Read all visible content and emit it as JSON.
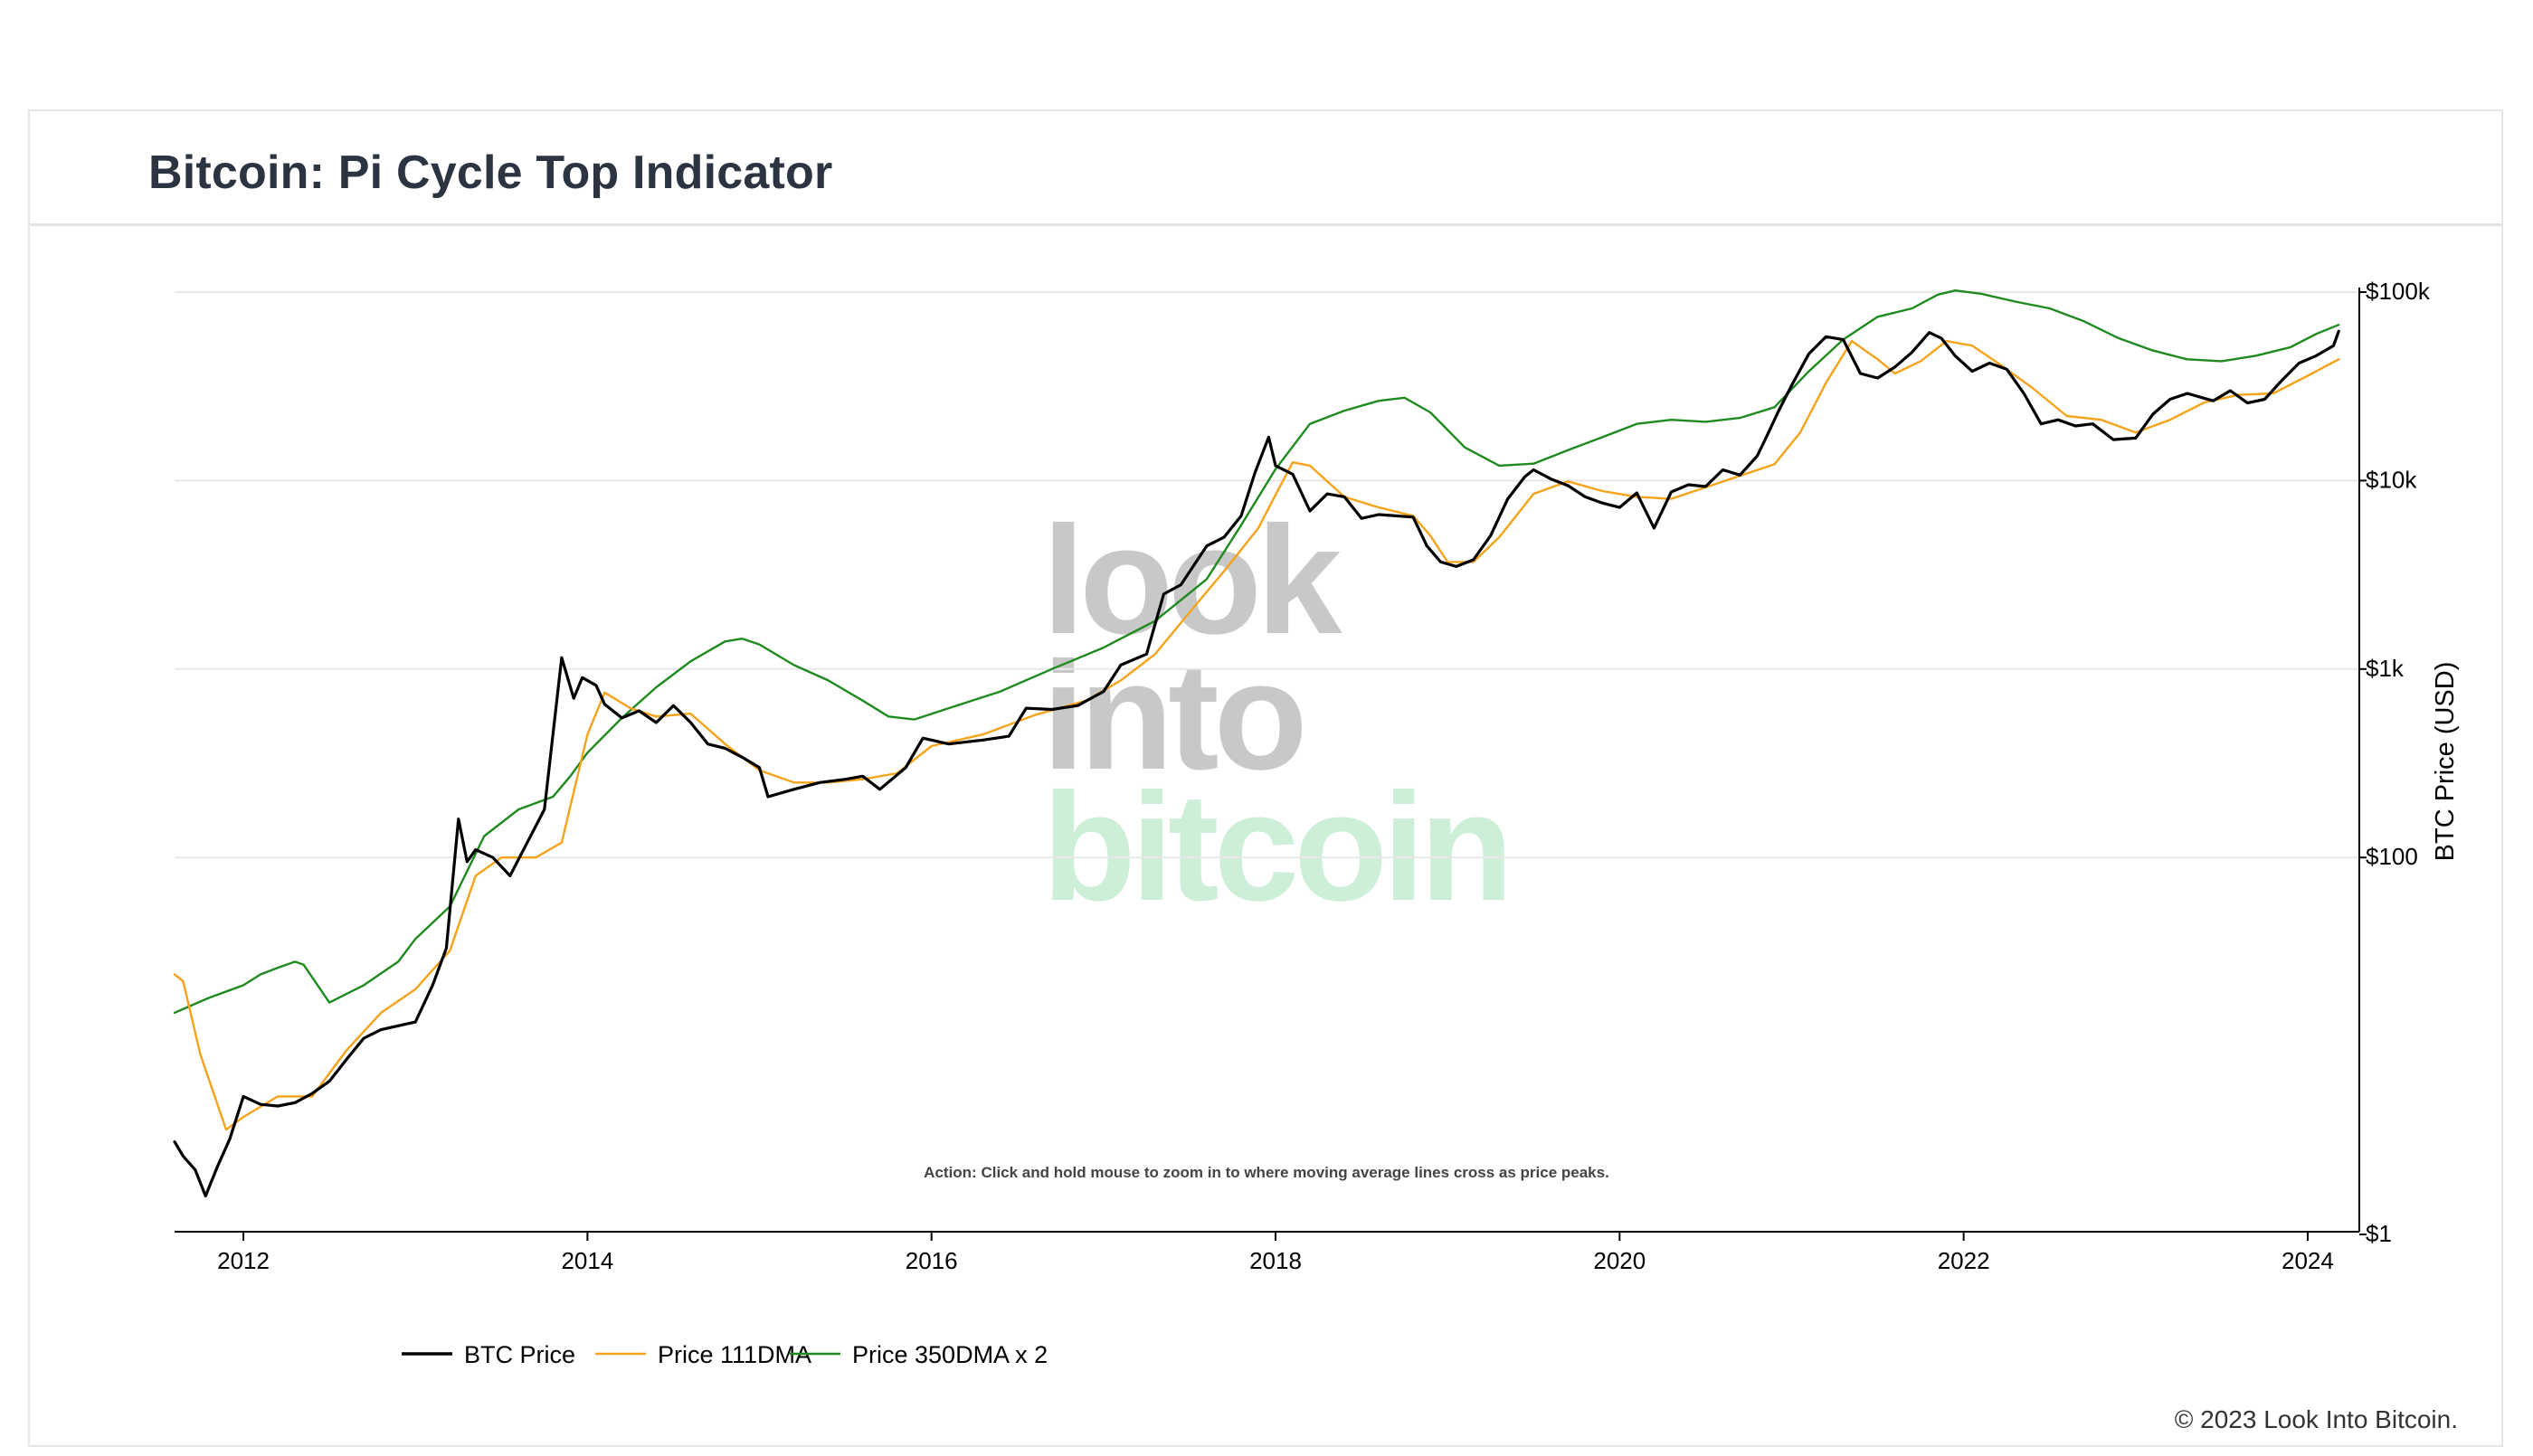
{
  "page": {
    "title": "Bitcoin: Pi Cycle Top Indicator",
    "copyright": "© 2023 Look Into Bitcoin.",
    "watermark": [
      "look",
      "into",
      "bitcoin"
    ],
    "action_note": "Action: Click and hold mouse to zoom in to where moving average lines cross as price peaks."
  },
  "colors": {
    "btc_price": "#000000",
    "dma111": "#f5a31a",
    "dma350x2": "#1f8a1f",
    "watermark_gray": "#c8c8c8",
    "watermark_green": "#cdeed7",
    "grid": "#e8e8e8"
  },
  "chart_data": {
    "type": "line",
    "title": "Bitcoin: Pi Cycle Top Indicator",
    "xlabel": "",
    "ylabel": "BTC Price (USD)",
    "yscale": "log",
    "xlim": [
      2011.6,
      2024.3
    ],
    "ylim": [
      1,
      100000
    ],
    "x_ticks": [
      "2012",
      "2014",
      "2016",
      "2018",
      "2020",
      "2022",
      "2024"
    ],
    "x_tick_values": [
      2012,
      2014,
      2016,
      2018,
      2020,
      2022,
      2024
    ],
    "y_ticks": [
      "$1",
      "$100",
      "$1k",
      "$10k",
      "$100k"
    ],
    "y_tick_values": [
      1,
      100,
      1000,
      10000,
      100000
    ],
    "legend": [
      "BTC Price",
      "Price 111DMA",
      "Price 350DMA x 2"
    ],
    "legend_position": "bottom-left",
    "series": [
      {
        "name": "BTC Price",
        "x": [
          2011.6,
          2011.65,
          2011.72,
          2011.78,
          2011.85,
          2011.92,
          2012.0,
          2012.1,
          2012.2,
          2012.3,
          2012.4,
          2012.5,
          2012.6,
          2012.7,
          2012.8,
          2012.9,
          2013.0,
          2013.1,
          2013.18,
          2013.25,
          2013.3,
          2013.35,
          2013.45,
          2013.55,
          2013.65,
          2013.75,
          2013.85,
          2013.92,
          2013.97,
          2014.05,
          2014.1,
          2014.2,
          2014.3,
          2014.4,
          2014.5,
          2014.6,
          2014.7,
          2014.8,
          2014.9,
          2015.0,
          2015.05,
          2015.2,
          2015.35,
          2015.5,
          2015.6,
          2015.7,
          2015.85,
          2015.95,
          2016.1,
          2016.3,
          2016.45,
          2016.55,
          2016.7,
          2016.85,
          2017.0,
          2017.1,
          2017.25,
          2017.35,
          2017.45,
          2017.6,
          2017.7,
          2017.8,
          2017.88,
          2017.96,
          2018.0,
          2018.1,
          2018.2,
          2018.3,
          2018.4,
          2018.5,
          2018.6,
          2018.7,
          2018.8,
          2018.88,
          2018.96,
          2019.05,
          2019.15,
          2019.25,
          2019.35,
          2019.45,
          2019.5,
          2019.6,
          2019.7,
          2019.8,
          2019.9,
          2020.0,
          2020.1,
          2020.2,
          2020.3,
          2020.4,
          2020.5,
          2020.6,
          2020.7,
          2020.8,
          2020.85,
          2020.92,
          2021.0,
          2021.1,
          2021.2,
          2021.3,
          2021.4,
          2021.5,
          2021.6,
          2021.7,
          2021.8,
          2021.87,
          2021.95,
          2022.05,
          2022.15,
          2022.25,
          2022.35,
          2022.45,
          2022.55,
          2022.65,
          2022.75,
          2022.87,
          2023.0,
          2023.1,
          2023.2,
          2023.3,
          2023.45,
          2023.55,
          2023.65,
          2023.75,
          2023.85,
          2023.95,
          2024.05,
          2024.15,
          2024.18
        ],
        "values": [
          3.1,
          2.6,
          2.2,
          1.6,
          2.3,
          3.2,
          5.4,
          4.9,
          4.8,
          5.0,
          5.6,
          6.5,
          8.5,
          11,
          12.2,
          12.8,
          13.4,
          21,
          33,
          160,
          95,
          110,
          100,
          80,
          120,
          180,
          1150,
          700,
          900,
          820,
          650,
          550,
          600,
          520,
          640,
          520,
          400,
          380,
          340,
          300,
          210,
          230,
          250,
          260,
          270,
          230,
          300,
          430,
          400,
          420,
          440,
          620,
          610,
          640,
          760,
          1050,
          1200,
          2500,
          2800,
          4500,
          5000,
          6500,
          11000,
          17000,
          12000,
          10800,
          6900,
          8500,
          8200,
          6300,
          6600,
          6500,
          6400,
          4500,
          3700,
          3500,
          3800,
          5100,
          8000,
          10500,
          11400,
          10200,
          9400,
          8200,
          7600,
          7200,
          8600,
          5600,
          8700,
          9500,
          9300,
          11400,
          10700,
          13500,
          16800,
          23000,
          32000,
          47000,
          58000,
          56000,
          37000,
          35000,
          40000,
          48000,
          61000,
          57000,
          46000,
          38000,
          42000,
          39000,
          29000,
          20000,
          21000,
          19500,
          20000,
          16500,
          16800,
          22500,
          27000,
          29000,
          26500,
          30000,
          25800,
          27000,
          34000,
          42000,
          46000,
          52000,
          62000
        ]
      },
      {
        "name": "Price 111DMA",
        "x": [
          2011.6,
          2011.65,
          2011.75,
          2011.9,
          2012.0,
          2012.2,
          2012.4,
          2012.6,
          2012.8,
          2013.0,
          2013.2,
          2013.35,
          2013.5,
          2013.7,
          2013.85,
          2014.0,
          2014.1,
          2014.25,
          2014.4,
          2014.6,
          2014.8,
          2015.0,
          2015.2,
          2015.4,
          2015.6,
          2015.8,
          2016.0,
          2016.3,
          2016.6,
          2016.9,
          2017.1,
          2017.3,
          2017.5,
          2017.7,
          2017.9,
          2018.0,
          2018.1,
          2018.2,
          2018.4,
          2018.6,
          2018.8,
          2018.9,
          2019.0,
          2019.15,
          2019.3,
          2019.5,
          2019.7,
          2019.9,
          2020.1,
          2020.3,
          2020.5,
          2020.7,
          2020.9,
          2021.05,
          2021.2,
          2021.35,
          2021.5,
          2021.6,
          2021.75,
          2021.9,
          2022.05,
          2022.2,
          2022.4,
          2022.6,
          2022.8,
          2023.0,
          2023.2,
          2023.4,
          2023.6,
          2023.8,
          2024.0,
          2024.18
        ],
        "values": [
          24,
          22,
          9,
          3.6,
          4.2,
          5.4,
          5.4,
          9.5,
          15,
          20,
          32,
          80,
          100,
          100,
          120,
          450,
          750,
          620,
          560,
          580,
          400,
          290,
          250,
          250,
          260,
          280,
          390,
          450,
          570,
          680,
          870,
          1200,
          2000,
          3300,
          5600,
          8400,
          12500,
          12000,
          8200,
          7200,
          6500,
          5100,
          3700,
          3700,
          5000,
          8500,
          9900,
          8800,
          8200,
          8000,
          9200,
          10600,
          12200,
          18000,
          33000,
          55000,
          44000,
          37000,
          43000,
          55000,
          52000,
          42000,
          31000,
          22000,
          21000,
          18000,
          21000,
          26000,
          28500,
          29000,
          36000,
          44000
        ]
      },
      {
        "name": "Price 350DMA x 2",
        "x": [
          2011.6,
          2011.8,
          2012.0,
          2012.1,
          2012.2,
          2012.3,
          2012.35,
          2012.5,
          2012.7,
          2012.9,
          2013.0,
          2013.2,
          2013.4,
          2013.6,
          2013.8,
          2013.9,
          2014.0,
          2014.2,
          2014.4,
          2014.6,
          2014.8,
          2014.9,
          2015.0,
          2015.2,
          2015.4,
          2015.6,
          2015.75,
          2015.9,
          2016.1,
          2016.4,
          2016.7,
          2017.0,
          2017.3,
          2017.6,
          2017.8,
          2018.0,
          2018.2,
          2018.4,
          2018.6,
          2018.75,
          2018.9,
          2019.1,
          2019.3,
          2019.5,
          2019.7,
          2019.9,
          2020.1,
          2020.3,
          2020.5,
          2020.7,
          2020.9,
          2021.1,
          2021.3,
          2021.5,
          2021.7,
          2021.85,
          2021.95,
          2022.1,
          2022.3,
          2022.5,
          2022.7,
          2022.9,
          2023.1,
          2023.3,
          2023.5,
          2023.7,
          2023.9,
          2024.05,
          2024.18
        ],
        "values": [
          15,
          18,
          21,
          24,
          26,
          28,
          27,
          17,
          21,
          28,
          37,
          55,
          130,
          180,
          210,
          270,
          360,
          550,
          800,
          1100,
          1400,
          1450,
          1350,
          1050,
          870,
          680,
          560,
          540,
          620,
          760,
          1000,
          1300,
          1800,
          3000,
          5800,
          11500,
          20000,
          23500,
          26500,
          27500,
          23000,
          15000,
          12000,
          12300,
          14500,
          17000,
          20000,
          21000,
          20500,
          21500,
          24500,
          38000,
          56000,
          74000,
          82000,
          97000,
          102000,
          98000,
          89000,
          82000,
          70000,
          57000,
          49000,
          44000,
          43000,
          46000,
          51000,
          60000,
          67000
        ]
      }
    ]
  }
}
